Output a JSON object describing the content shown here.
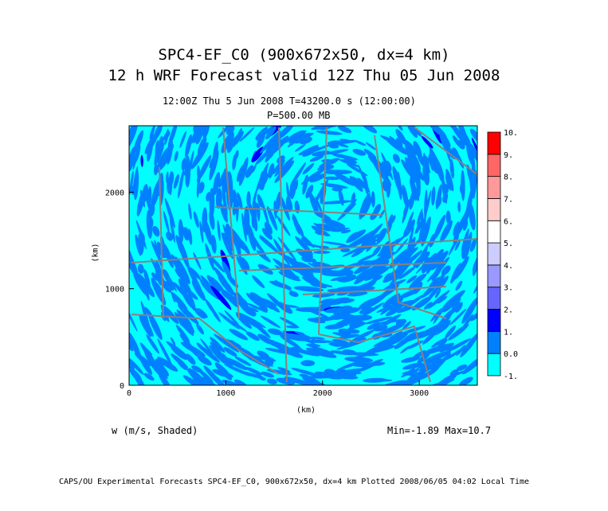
{
  "titles": {
    "line1": "SPC4-EF_C0 (900x672x50, dx=4 km)",
    "line2": "12 h WRF Forecast valid 12Z Thu 05 Jun 2008",
    "time": "12:00Z Thu  5 Jun 2008     T=43200.0 s (12:00:00)",
    "level": "P=500.00 MB"
  },
  "field_label": "w (m/s, Shaded)",
  "minmax": "Min=-1.89 Max=10.7",
  "footer": "CAPS/OU Experimental Forecasts  SPC4-EF_C0, 900x672x50, dx=4 km  Plotted 2008/06/05 04:02 Local Time",
  "chart_data": {
    "type": "heatmap",
    "xlabel": "(km)",
    "ylabel": "(km)",
    "xlim": [
      0,
      3600
    ],
    "ylim": [
      0,
      2688
    ],
    "xticks": [
      "0",
      "1000",
      "2000",
      "3000"
    ],
    "xtick_values": [
      0,
      1000,
      2000,
      3000
    ],
    "yticks": [
      "0",
      "1000",
      "2000"
    ],
    "ytick_values": [
      0,
      1000,
      2000
    ],
    "colorbar": {
      "labels": [
        "-1.",
        "0.0",
        "1.",
        "2.",
        "3.",
        "4.",
        "5.",
        "6.",
        "7.",
        "8.",
        "9.",
        "10."
      ],
      "colors": [
        "#00ffff",
        "#0080ff",
        "#0000ff",
        "#6666ff",
        "#9999ff",
        "#ccccff",
        "#ffffff",
        "#ffcccc",
        "#ff9999",
        "#ff6666",
        "#ff0000"
      ]
    },
    "min": -1.89,
    "max": 10.7
  }
}
